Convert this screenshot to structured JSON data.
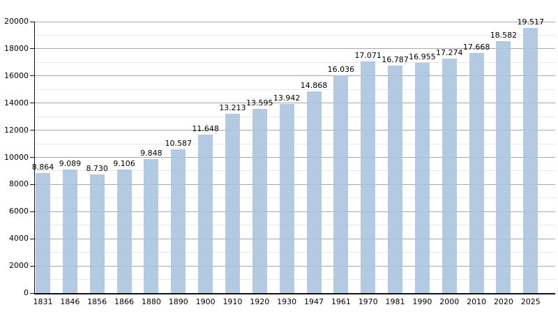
{
  "chart_data": {
    "type": "bar",
    "title": "",
    "xlabel": "",
    "ylabel": "",
    "categories": [
      "1831",
      "1846",
      "1856",
      "1866",
      "1880",
      "1890",
      "1900",
      "1910",
      "1920",
      "1930",
      "1947",
      "1961",
      "1970",
      "1981",
      "1990",
      "2000",
      "2010",
      "2020",
      "2025"
    ],
    "values": [
      8864,
      9089,
      8730,
      9106,
      9848,
      10587,
      11648,
      13213,
      13595,
      13942,
      14868,
      16036,
      17071,
      16787,
      16955,
      17274,
      17668,
      18582,
      19517
    ],
    "value_labels": [
      "8.864",
      "9.089",
      "8.730",
      "9.106",
      "9.848",
      "10.587",
      "11.648",
      "13.213",
      "13.595",
      "13.942",
      "14.868",
      "16.036",
      "17.071",
      "16.787",
      "16.955",
      "17.274",
      "17.668",
      "18.582",
      "19.517"
    ],
    "ylim": [
      0,
      20000
    ],
    "y_major_step": 2000,
    "y_minor_step": 1000,
    "y_tick_labels": [
      "0",
      "2000",
      "4000",
      "6000",
      "8000",
      "10000",
      "12000",
      "14000",
      "16000",
      "18000",
      "20000"
    ],
    "grid": true,
    "legend": false,
    "legend_position": "none",
    "colors": {
      "bar_fill": "#a9c3de",
      "gridline_major": "#a6a6a6",
      "gridline_minor": "#e7e7e7",
      "axis": "#111111",
      "label_text": "#000000",
      "background": "#ffffff"
    }
  }
}
